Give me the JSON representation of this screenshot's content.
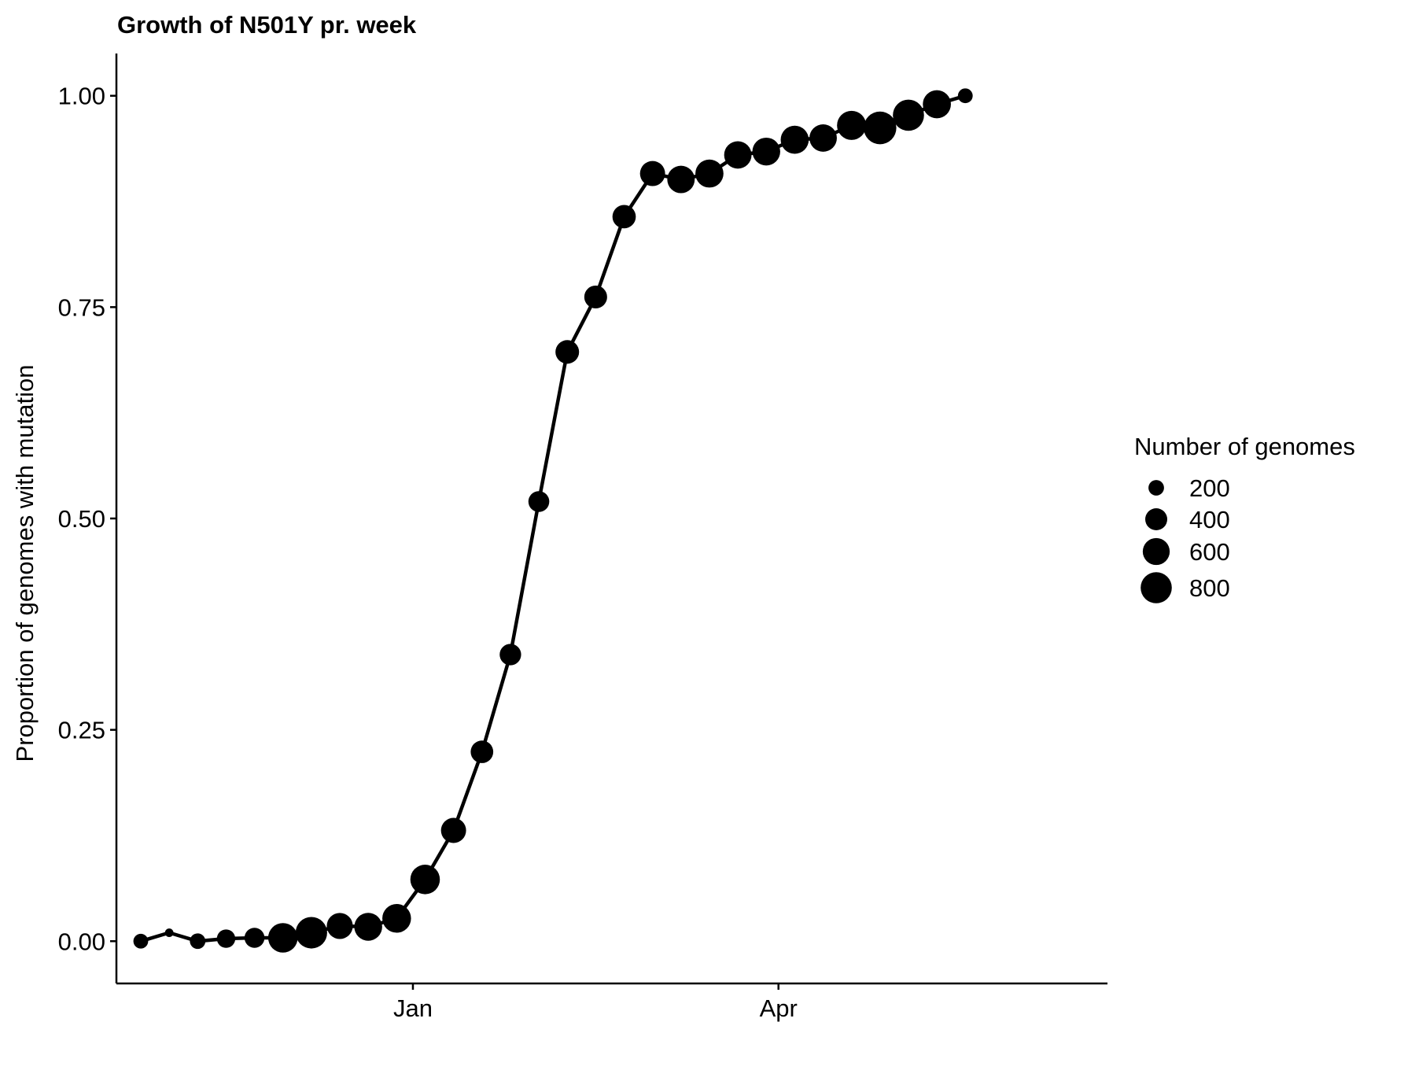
{
  "chart_data": {
    "type": "line",
    "title": "Growth of N501Y pr. week",
    "xlabel": "",
    "ylabel": "Proportion of genomes with mutation",
    "ylim": [
      -0.05,
      1.05
    ],
    "yticks": [
      "0.00",
      "0.25",
      "0.50",
      "0.75",
      "1.00"
    ],
    "ytick_values": [
      0,
      0.25,
      0.5,
      0.75,
      1.0
    ],
    "xlim": [
      "2020-10-20",
      "2021-06-21"
    ],
    "xticks": [
      "Jan",
      "Apr"
    ],
    "xtick_values": [
      "2021-01-01",
      "2021-04-01"
    ],
    "grid": false,
    "legend": {
      "title": "Number of genomes",
      "position": "right",
      "entries": [
        {
          "label": "200",
          "value": 200
        },
        {
          "label": "400",
          "value": 400
        },
        {
          "label": "600",
          "value": 600
        },
        {
          "label": "800",
          "value": 800
        }
      ]
    },
    "series": [
      {
        "points": [
          {
            "x": "2020-10-26",
            "y": 0.0,
            "n": 180
          },
          {
            "x": "2020-11-02",
            "y": 0.01,
            "n": 60
          },
          {
            "x": "2020-11-09",
            "y": 0.0,
            "n": 200
          },
          {
            "x": "2020-11-16",
            "y": 0.003,
            "n": 280
          },
          {
            "x": "2020-11-23",
            "y": 0.004,
            "n": 330
          },
          {
            "x": "2020-11-30",
            "y": 0.004,
            "n": 720
          },
          {
            "x": "2020-12-07",
            "y": 0.01,
            "n": 820
          },
          {
            "x": "2020-12-14",
            "y": 0.018,
            "n": 560
          },
          {
            "x": "2020-12-21",
            "y": 0.017,
            "n": 640
          },
          {
            "x": "2020-12-28",
            "y": 0.027,
            "n": 680
          },
          {
            "x": "2021-01-04",
            "y": 0.073,
            "n": 720
          },
          {
            "x": "2021-01-11",
            "y": 0.131,
            "n": 520
          },
          {
            "x": "2021-01-18",
            "y": 0.224,
            "n": 420
          },
          {
            "x": "2021-01-25",
            "y": 0.339,
            "n": 380
          },
          {
            "x": "2021-02-01",
            "y": 0.52,
            "n": 360
          },
          {
            "x": "2021-02-08",
            "y": 0.697,
            "n": 460
          },
          {
            "x": "2021-02-15",
            "y": 0.762,
            "n": 430
          },
          {
            "x": "2021-02-22",
            "y": 0.857,
            "n": 450
          },
          {
            "x": "2021-03-01",
            "y": 0.908,
            "n": 520
          },
          {
            "x": "2021-03-08",
            "y": 0.901,
            "n": 620
          },
          {
            "x": "2021-03-15",
            "y": 0.908,
            "n": 650
          },
          {
            "x": "2021-03-22",
            "y": 0.93,
            "n": 620
          },
          {
            "x": "2021-03-29",
            "y": 0.934,
            "n": 640
          },
          {
            "x": "2021-04-05",
            "y": 0.948,
            "n": 650
          },
          {
            "x": "2021-04-12",
            "y": 0.95,
            "n": 620
          },
          {
            "x": "2021-04-19",
            "y": 0.965,
            "n": 700
          },
          {
            "x": "2021-04-26",
            "y": 0.962,
            "n": 880
          },
          {
            "x": "2021-05-03",
            "y": 0.977,
            "n": 800
          },
          {
            "x": "2021-05-10",
            "y": 0.99,
            "n": 650
          },
          {
            "x": "2021-05-17",
            "y": 1.0,
            "n": 180
          }
        ]
      }
    ]
  }
}
